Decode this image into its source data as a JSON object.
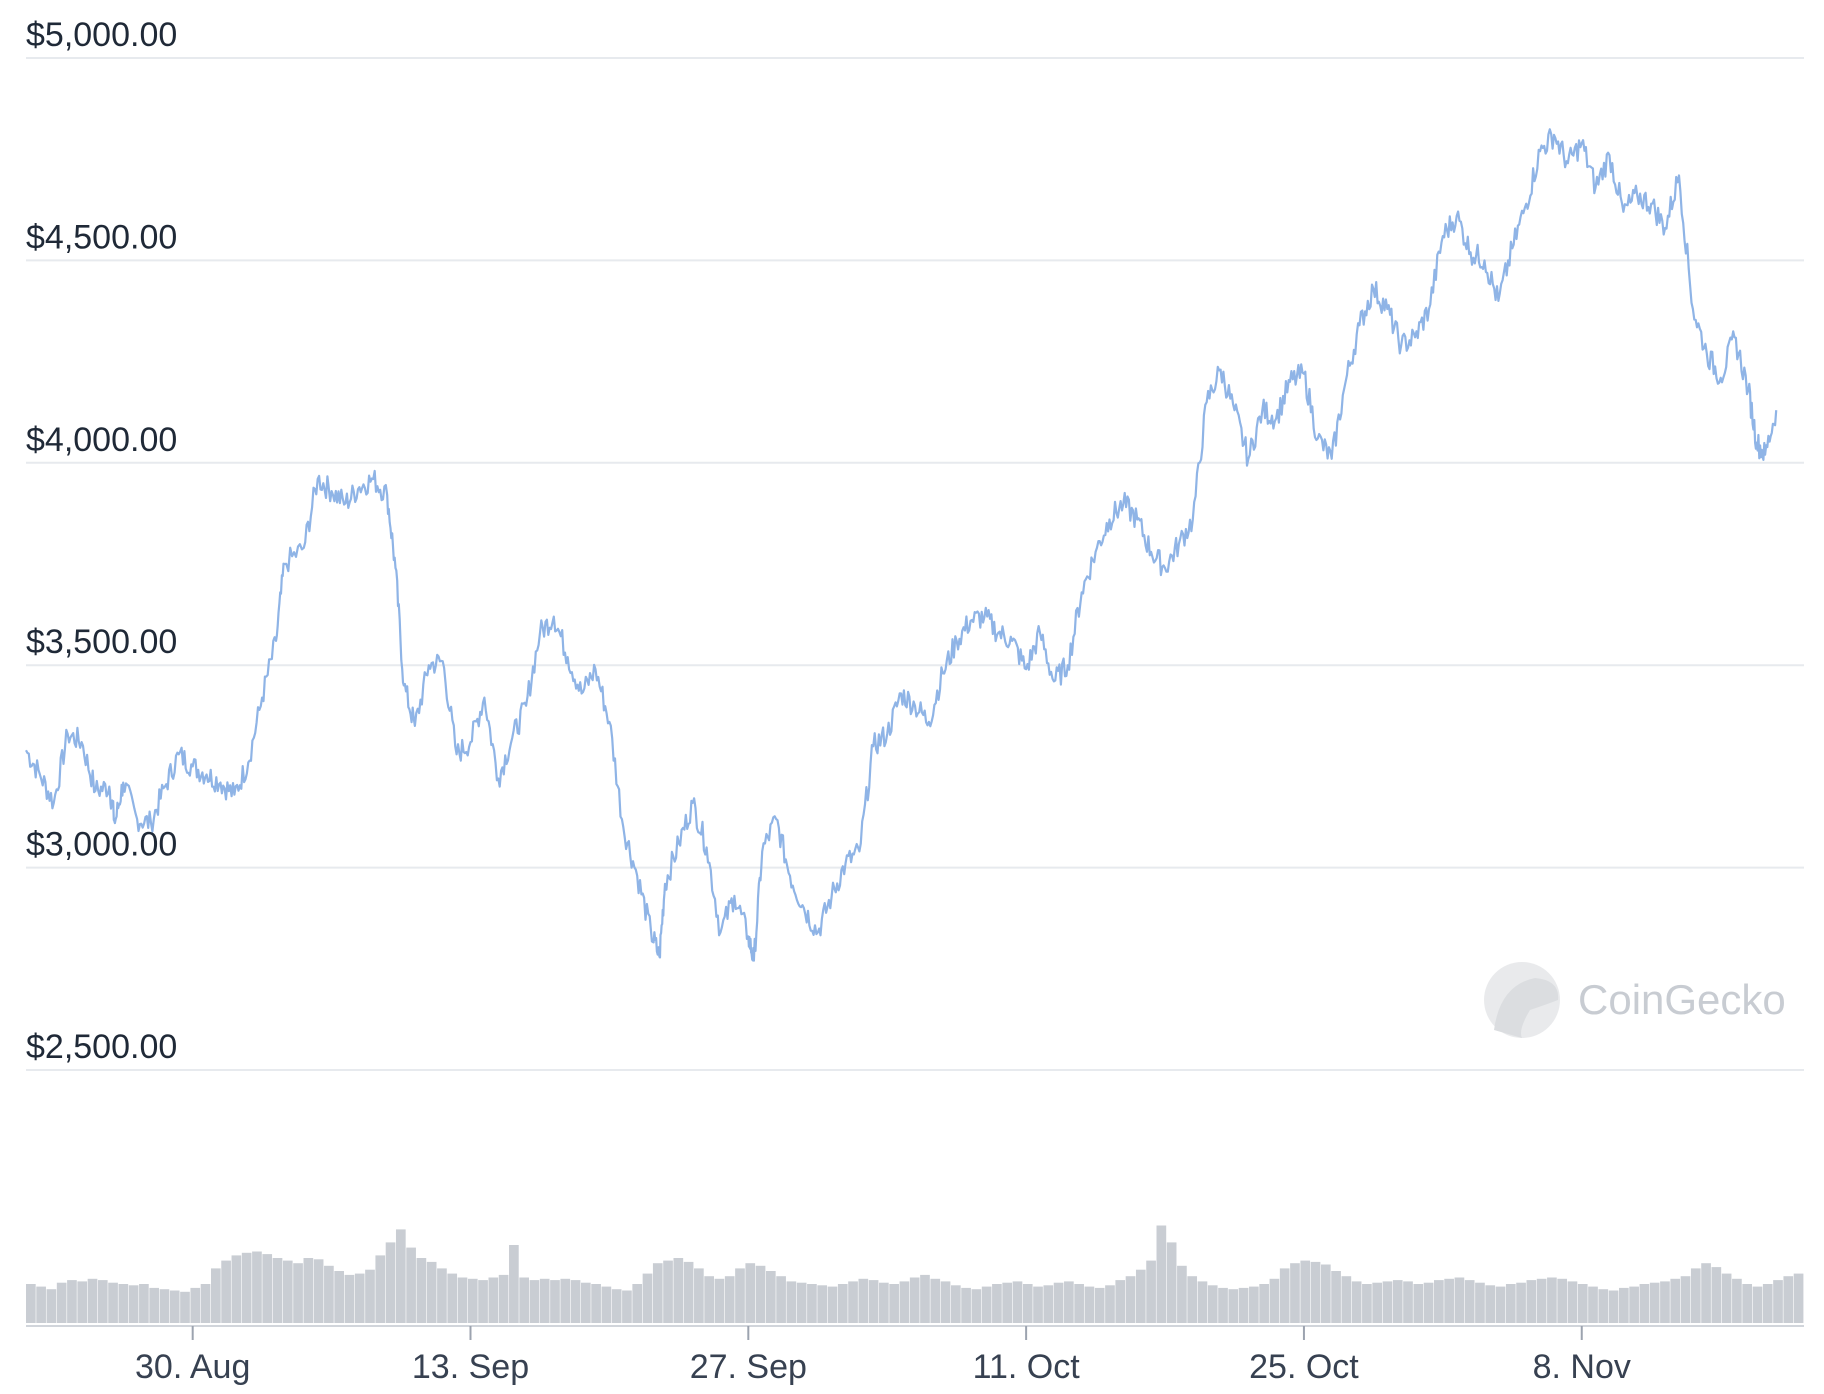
{
  "chart_data": {
    "type": "line",
    "y_axis": {
      "ticks": [
        {
          "value": 5000,
          "label": "$5,000.00"
        },
        {
          "value": 4500,
          "label": "$4,500.00"
        },
        {
          "value": 4000,
          "label": "$4,000.00"
        },
        {
          "value": 3500,
          "label": "$3,500.00"
        },
        {
          "value": 3000,
          "label": "$3,000.00"
        },
        {
          "value": 2500,
          "label": "$2,500.00"
        }
      ],
      "ylim": [
        2500,
        5000
      ]
    },
    "x_axis": {
      "xlim": [
        -6,
        58
      ],
      "ticks": [
        {
          "day": 0,
          "label": "30. Aug"
        },
        {
          "day": 10,
          "label": "13. Sep"
        },
        {
          "day": 20,
          "label": "27. Sep"
        },
        {
          "day": 30,
          "label": "11. Oct"
        },
        {
          "day": 40,
          "label": "25. Oct"
        },
        {
          "day": 50,
          "label": "8. Nov"
        }
      ]
    },
    "series": [
      {
        "color": "#8fb4e6",
        "points": [
          [
            -6,
            3290
          ],
          [
            -5.5,
            3230
          ],
          [
            -5,
            3160
          ],
          [
            -4.5,
            3330
          ],
          [
            -4,
            3310
          ],
          [
            -3.5,
            3190
          ],
          [
            -3,
            3200
          ],
          [
            -2.8,
            3110
          ],
          [
            -2.5,
            3210
          ],
          [
            -2,
            3120
          ],
          [
            -1.5,
            3110
          ],
          [
            -1,
            3200
          ],
          [
            -0.5,
            3280
          ],
          [
            0,
            3250
          ],
          [
            0.5,
            3230
          ],
          [
            1,
            3210
          ],
          [
            1.5,
            3180
          ],
          [
            2,
            3260
          ],
          [
            2.5,
            3420
          ],
          [
            3,
            3560
          ],
          [
            3.3,
            3750
          ],
          [
            4,
            3790
          ],
          [
            4.5,
            3960
          ],
          [
            5,
            3930
          ],
          [
            5.5,
            3900
          ],
          [
            6,
            3940
          ],
          [
            6.5,
            3960
          ],
          [
            7,
            3920
          ],
          [
            7.3,
            3740
          ],
          [
            7.6,
            3450
          ],
          [
            8,
            3350
          ],
          [
            8.5,
            3500
          ],
          [
            9,
            3510
          ],
          [
            9.5,
            3280
          ],
          [
            10,
            3310
          ],
          [
            10.5,
            3420
          ],
          [
            11,
            3220
          ],
          [
            11.5,
            3320
          ],
          [
            12,
            3400
          ],
          [
            12.5,
            3580
          ],
          [
            13,
            3620
          ],
          [
            13.5,
            3520
          ],
          [
            14,
            3430
          ],
          [
            14.5,
            3490
          ],
          [
            15,
            3360
          ],
          [
            15.5,
            3100
          ],
          [
            16,
            2980
          ],
          [
            16.5,
            2840
          ],
          [
            16.8,
            2780
          ],
          [
            17,
            2960
          ],
          [
            17.5,
            3060
          ],
          [
            18,
            3160
          ],
          [
            18.5,
            3050
          ],
          [
            19,
            2840
          ],
          [
            19.5,
            2930
          ],
          [
            20,
            2830
          ],
          [
            20.2,
            2770
          ],
          [
            20.5,
            3040
          ],
          [
            21,
            3120
          ],
          [
            21.5,
            2980
          ],
          [
            22,
            2900
          ],
          [
            22.5,
            2840
          ],
          [
            23,
            2930
          ],
          [
            23.5,
            3010
          ],
          [
            24,
            3040
          ],
          [
            24.5,
            3300
          ],
          [
            25,
            3330
          ],
          [
            25.5,
            3430
          ],
          [
            26,
            3400
          ],
          [
            26.5,
            3360
          ],
          [
            27,
            3480
          ],
          [
            27.5,
            3560
          ],
          [
            28,
            3610
          ],
          [
            28.5,
            3620
          ],
          [
            29,
            3580
          ],
          [
            29.5,
            3560
          ],
          [
            30,
            3490
          ],
          [
            30.5,
            3580
          ],
          [
            31,
            3460
          ],
          [
            31.5,
            3500
          ],
          [
            32,
            3680
          ],
          [
            32.5,
            3780
          ],
          [
            33,
            3860
          ],
          [
            33.5,
            3900
          ],
          [
            34,
            3860
          ],
          [
            34.5,
            3780
          ],
          [
            35,
            3740
          ],
          [
            35.5,
            3800
          ],
          [
            36,
            3860
          ],
          [
            36.5,
            4150
          ],
          [
            37,
            4230
          ],
          [
            37.5,
            4130
          ],
          [
            38,
            4010
          ],
          [
            38.5,
            4130
          ],
          [
            39,
            4110
          ],
          [
            39.5,
            4200
          ],
          [
            40,
            4220
          ],
          [
            40.5,
            4060
          ],
          [
            41,
            4010
          ],
          [
            41.5,
            4200
          ],
          [
            42,
            4340
          ],
          [
            42.5,
            4430
          ],
          [
            43,
            4380
          ],
          [
            43.5,
            4290
          ],
          [
            44,
            4310
          ],
          [
            44.5,
            4380
          ],
          [
            45,
            4560
          ],
          [
            45.5,
            4610
          ],
          [
            46,
            4520
          ],
          [
            46.5,
            4500
          ],
          [
            47,
            4400
          ],
          [
            47.5,
            4530
          ],
          [
            48,
            4640
          ],
          [
            48.5,
            4770
          ],
          [
            49,
            4810
          ],
          [
            49.5,
            4740
          ],
          [
            50,
            4790
          ],
          [
            50.5,
            4680
          ],
          [
            51,
            4760
          ],
          [
            51.5,
            4620
          ],
          [
            52,
            4660
          ],
          [
            52.5,
            4640
          ],
          [
            53,
            4580
          ],
          [
            53.5,
            4710
          ],
          [
            54,
            4380
          ],
          [
            54.5,
            4270
          ],
          [
            55,
            4210
          ],
          [
            55.5,
            4310
          ],
          [
            56,
            4180
          ],
          [
            56.3,
            4050
          ],
          [
            56.6,
            4020
          ],
          [
            57,
            4130
          ]
        ]
      }
    ],
    "volume": {
      "color": "#c9cdd3",
      "values": [
        30,
        28,
        26,
        31,
        33,
        32,
        34,
        33,
        31,
        30,
        29,
        30,
        27,
        26,
        25,
        24,
        27,
        30,
        42,
        48,
        52,
        54,
        55,
        53,
        50,
        48,
        46,
        50,
        49,
        44,
        40,
        37,
        38,
        41,
        52,
        62,
        72,
        58,
        50,
        47,
        42,
        38,
        35,
        34,
        33,
        35,
        37,
        60,
        35,
        33,
        34,
        33,
        34,
        33,
        31,
        30,
        28,
        26,
        25,
        30,
        38,
        46,
        48,
        50,
        47,
        42,
        36,
        34,
        36,
        42,
        46,
        44,
        40,
        36,
        32,
        31,
        30,
        29,
        28,
        30,
        32,
        34,
        33,
        31,
        30,
        32,
        35,
        37,
        34,
        32,
        29,
        27,
        26,
        28,
        30,
        31,
        32,
        30,
        28,
        29,
        31,
        32,
        30,
        28,
        27,
        29,
        33,
        36,
        41,
        48,
        75,
        62,
        44,
        36,
        32,
        29,
        27,
        26,
        27,
        28,
        30,
        34,
        42,
        46,
        48,
        47,
        45,
        40,
        36,
        32,
        30,
        31,
        32,
        33,
        32,
        30,
        31,
        33,
        34,
        35,
        33,
        31,
        29,
        28,
        30,
        31,
        33,
        34,
        35,
        34,
        32,
        30,
        28,
        26,
        25,
        27,
        28,
        30,
        31,
        32,
        34,
        36,
        42,
        46,
        43,
        38,
        34,
        30,
        28,
        30,
        33,
        36,
        38
      ]
    }
  },
  "watermark": {
    "text": "CoinGecko",
    "icon": "gecko-logo-icon"
  }
}
